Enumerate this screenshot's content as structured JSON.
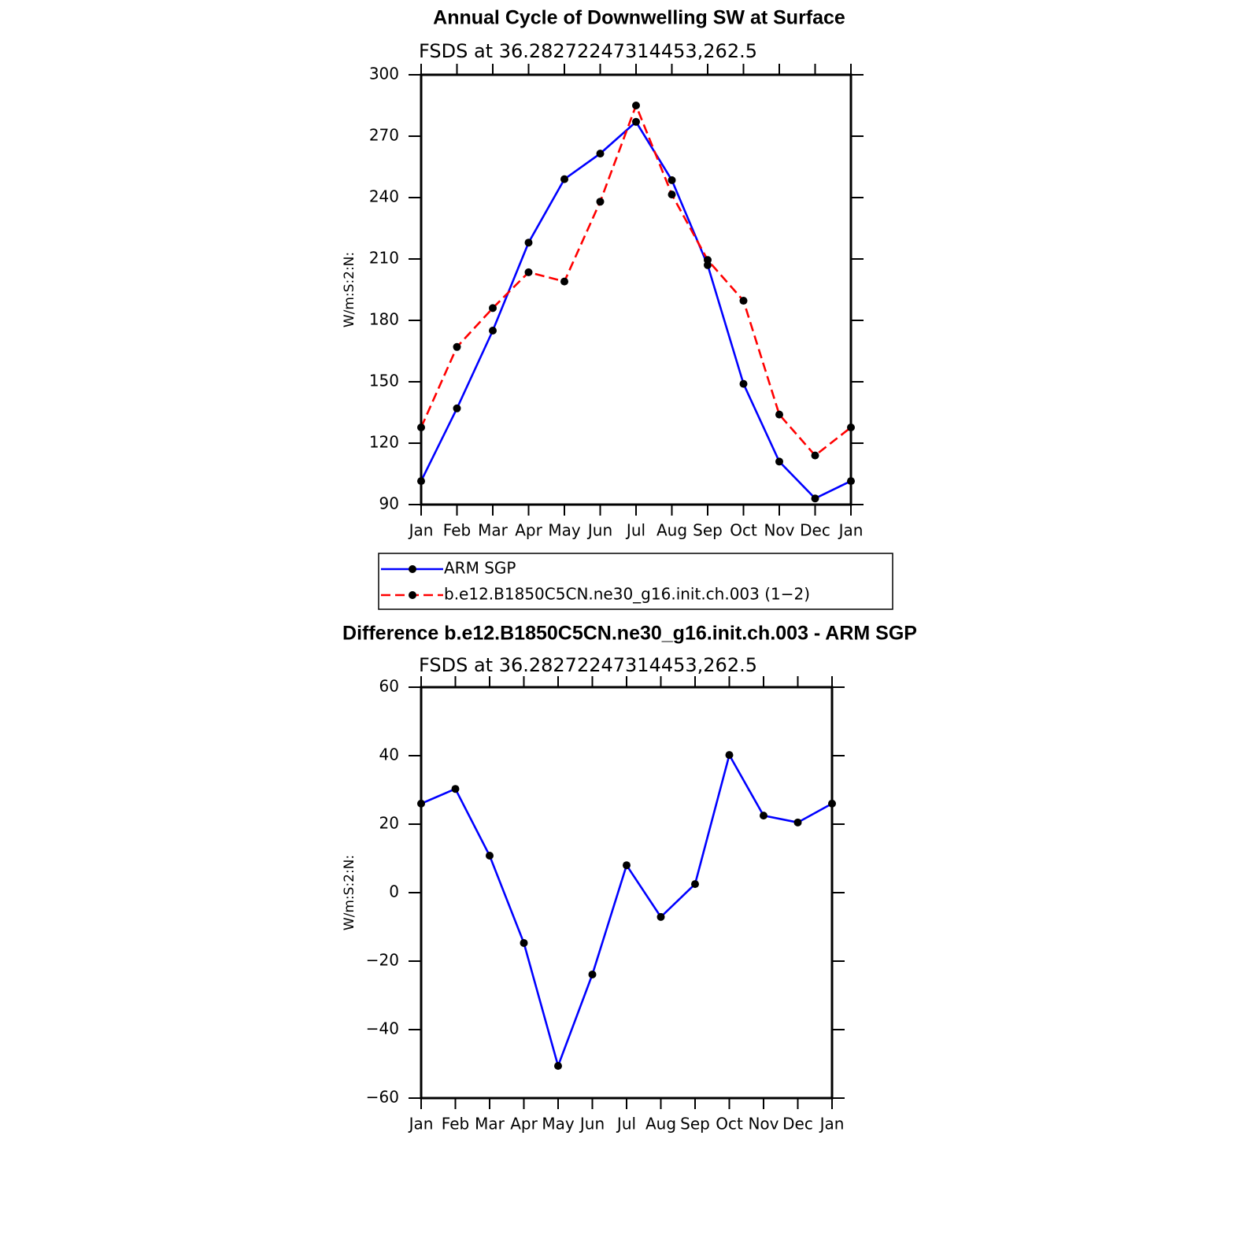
{
  "chart_data": [
    {
      "type": "line",
      "title": "Annual Cycle of Downwelling SW at Surface",
      "subtitle": "FSDS at 36.28272247314453,262.5",
      "ylabel": "W/m:S:2:N:",
      "categories": [
        "Jan",
        "Feb",
        "Mar",
        "Apr",
        "May",
        "Jun",
        "Jul",
        "Aug",
        "Sep",
        "Oct",
        "Nov",
        "Dec",
        "Jan"
      ],
      "series": [
        {
          "name": "ARM SGP",
          "color": "#0000ff",
          "dashed": false,
          "values": [
            101.5,
            137,
            175,
            218,
            249,
            261.5,
            277,
            248.5,
            207,
            149,
            111,
            93,
            101.5
          ]
        },
        {
          "name": "b.e12.B1850C5CN.ne30_g16.init.ch.003 (1−2)",
          "color": "#ff0000",
          "dashed": true,
          "values": [
            127.7,
            167,
            186,
            203.5,
            199,
            238,
            285,
            241.5,
            209.5,
            189.6,
            134,
            114,
            127.7
          ]
        }
      ],
      "ylim": [
        90,
        300
      ],
      "yticks": [
        90,
        120,
        150,
        180,
        210,
        240,
        270,
        300
      ],
      "markers": true,
      "legend": "bottom"
    },
    {
      "type": "line",
      "title": "Difference b.e12.B1850C5CN.ne30_g16.init.ch.003 - ARM SGP",
      "subtitle": "FSDS at 36.28272247314453,262.5",
      "ylabel": "W/m:S:2:N:",
      "categories": [
        "Jan",
        "Feb",
        "Mar",
        "Apr",
        "May",
        "Jun",
        "Jul",
        "Aug",
        "Sep",
        "Oct",
        "Nov",
        "Dec",
        "Jan"
      ],
      "values": [
        26,
        30.3,
        10.8,
        -14.7,
        -50.6,
        -23.9,
        8,
        -7.1,
        2.5,
        40.2,
        22.5,
        20.5,
        26
      ],
      "color": "#0000ff",
      "ylim": [
        -60,
        60
      ],
      "yticks": [
        {
          "value": -60,
          "label": "−60"
        },
        {
          "value": -40,
          "label": "−40"
        },
        {
          "value": -20,
          "label": "−20"
        },
        0,
        20,
        40,
        60
      ],
      "markers": true
    }
  ]
}
